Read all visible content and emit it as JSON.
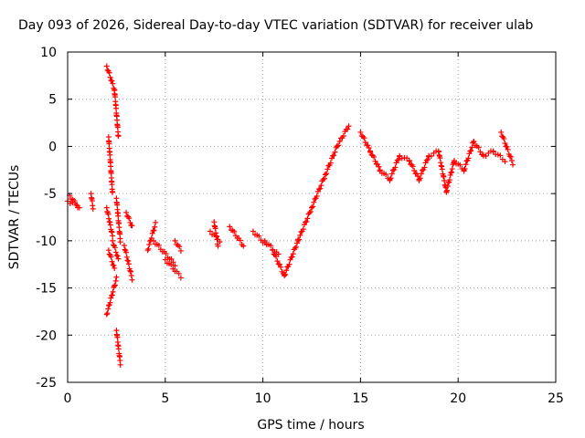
{
  "chart_data": {
    "type": "scatter",
    "title": "Day 093 of 2026, Sidereal Day-to-day VTEC variation (SDTVAR) for receiver ulab",
    "xlabel": "GPS time / hours",
    "ylabel": "SDTVAR / TECUs",
    "xlim": [
      0,
      25
    ],
    "ylim": [
      -25,
      10
    ],
    "xticks": [
      "0",
      "5",
      "10",
      "15",
      "20",
      "25"
    ],
    "yticks": [
      "10",
      "5",
      "0",
      "-5",
      "-10",
      "-15",
      "-20",
      "-25"
    ],
    "grid": true,
    "marker": "+",
    "color": "#ff0000",
    "segments": [
      {
        "x": [
          0.0,
          0.5
        ],
        "y": [
          -5.8,
          -6.2
        ]
      },
      {
        "x": [
          0.1,
          0.6
        ],
        "y": [
          -5.2,
          -6.6
        ]
      },
      {
        "x": [
          1.2,
          1.3
        ],
        "y": [
          -5.0,
          -6.5
        ]
      },
      {
        "x": [
          2.0,
          2.4
        ],
        "y": [
          8.5,
          6.0
        ]
      },
      {
        "x": [
          2.4,
          2.6
        ],
        "y": [
          6.0,
          1.0
        ]
      },
      {
        "x": [
          2.1,
          2.3
        ],
        "y": [
          1.0,
          -5.0
        ]
      },
      {
        "x": [
          2.0,
          2.3
        ],
        "y": [
          -6.5,
          -9.5
        ]
      },
      {
        "x": [
          2.1,
          2.4
        ],
        "y": [
          -11.0,
          -13.0
        ]
      },
      {
        "x": [
          2.0,
          2.5
        ],
        "y": [
          -17.8,
          -14.0
        ]
      },
      {
        "x": [
          2.3,
          2.6
        ],
        "y": [
          -10.0,
          -12.0
        ]
      },
      {
        "x": [
          2.5,
          2.7
        ],
        "y": [
          -19.5,
          -23.0
        ]
      },
      {
        "x": [
          2.5,
          2.7
        ],
        "y": [
          -5.5,
          -10.0
        ]
      },
      {
        "x": [
          2.9,
          3.3
        ],
        "y": [
          -10.5,
          -14.0
        ]
      },
      {
        "x": [
          3.0,
          3.3
        ],
        "y": [
          -7.0,
          -8.5
        ]
      },
      {
        "x": [
          4.1,
          4.5
        ],
        "y": [
          -11.0,
          -8.2
        ]
      },
      {
        "x": [
          4.4,
          5.5
        ],
        "y": [
          -10.0,
          -12.5
        ]
      },
      {
        "x": [
          5.0,
          5.8
        ],
        "y": [
          -12.0,
          -13.8
        ]
      },
      {
        "x": [
          5.5,
          5.8
        ],
        "y": [
          -10.0,
          -11.0
        ]
      },
      {
        "x": [
          7.3,
          7.8
        ],
        "y": [
          -9.0,
          -10.0
        ]
      },
      {
        "x": [
          7.5,
          7.7
        ],
        "y": [
          -8.0,
          -10.5
        ]
      },
      {
        "x": [
          8.3,
          9.0
        ],
        "y": [
          -8.5,
          -10.5
        ]
      },
      {
        "x": [
          9.5,
          10.2
        ],
        "y": [
          -9.0,
          -10.5
        ]
      },
      {
        "x": [
          10.1,
          10.8
        ],
        "y": [
          -10.0,
          -11.5
        ]
      },
      {
        "x": [
          10.5,
          11.1
        ],
        "y": [
          -11.0,
          -13.7
        ]
      },
      {
        "x": [
          11.1,
          11.8
        ],
        "y": [
          -13.7,
          -10.0
        ]
      },
      {
        "x": [
          11.8,
          12.5
        ],
        "y": [
          -10.0,
          -6.5
        ]
      },
      {
        "x": [
          12.5,
          13.2
        ],
        "y": [
          -6.5,
          -3.0
        ]
      },
      {
        "x": [
          13.2,
          13.8
        ],
        "y": [
          -3.0,
          0.0
        ]
      },
      {
        "x": [
          13.8,
          14.4
        ],
        "y": [
          0.0,
          2.2
        ]
      },
      {
        "x": [
          15.0,
          15.5
        ],
        "y": [
          1.5,
          -0.5
        ]
      },
      {
        "x": [
          15.5,
          16.0
        ],
        "y": [
          -0.5,
          -2.5
        ]
      },
      {
        "x": [
          16.0,
          16.5
        ],
        "y": [
          -2.5,
          -3.5
        ]
      },
      {
        "x": [
          16.5,
          17.0
        ],
        "y": [
          -3.5,
          -1.0
        ]
      },
      {
        "x": [
          17.0,
          17.5
        ],
        "y": [
          -1.0,
          -1.5
        ]
      },
      {
        "x": [
          17.5,
          18.0
        ],
        "y": [
          -1.5,
          -3.5
        ]
      },
      {
        "x": [
          18.0,
          18.5
        ],
        "y": [
          -3.5,
          -1.0
        ]
      },
      {
        "x": [
          18.5,
          19.0
        ],
        "y": [
          -1.0,
          -0.5
        ]
      },
      {
        "x": [
          19.0,
          19.4
        ],
        "y": [
          -0.5,
          -4.8
        ]
      },
      {
        "x": [
          19.4,
          19.8
        ],
        "y": [
          -4.8,
          -1.5
        ]
      },
      {
        "x": [
          19.8,
          20.3
        ],
        "y": [
          -1.5,
          -2.5
        ]
      },
      {
        "x": [
          20.3,
          20.8
        ],
        "y": [
          -2.5,
          0.5
        ]
      },
      {
        "x": [
          20.8,
          21.3
        ],
        "y": [
          0.5,
          -1.0
        ]
      },
      {
        "x": [
          21.3,
          21.8
        ],
        "y": [
          -1.0,
          -0.5
        ]
      },
      {
        "x": [
          21.8,
          22.4
        ],
        "y": [
          -0.5,
          -1.5
        ]
      },
      {
        "x": [
          22.2,
          22.8
        ],
        "y": [
          1.5,
          -1.8
        ]
      }
    ]
  }
}
